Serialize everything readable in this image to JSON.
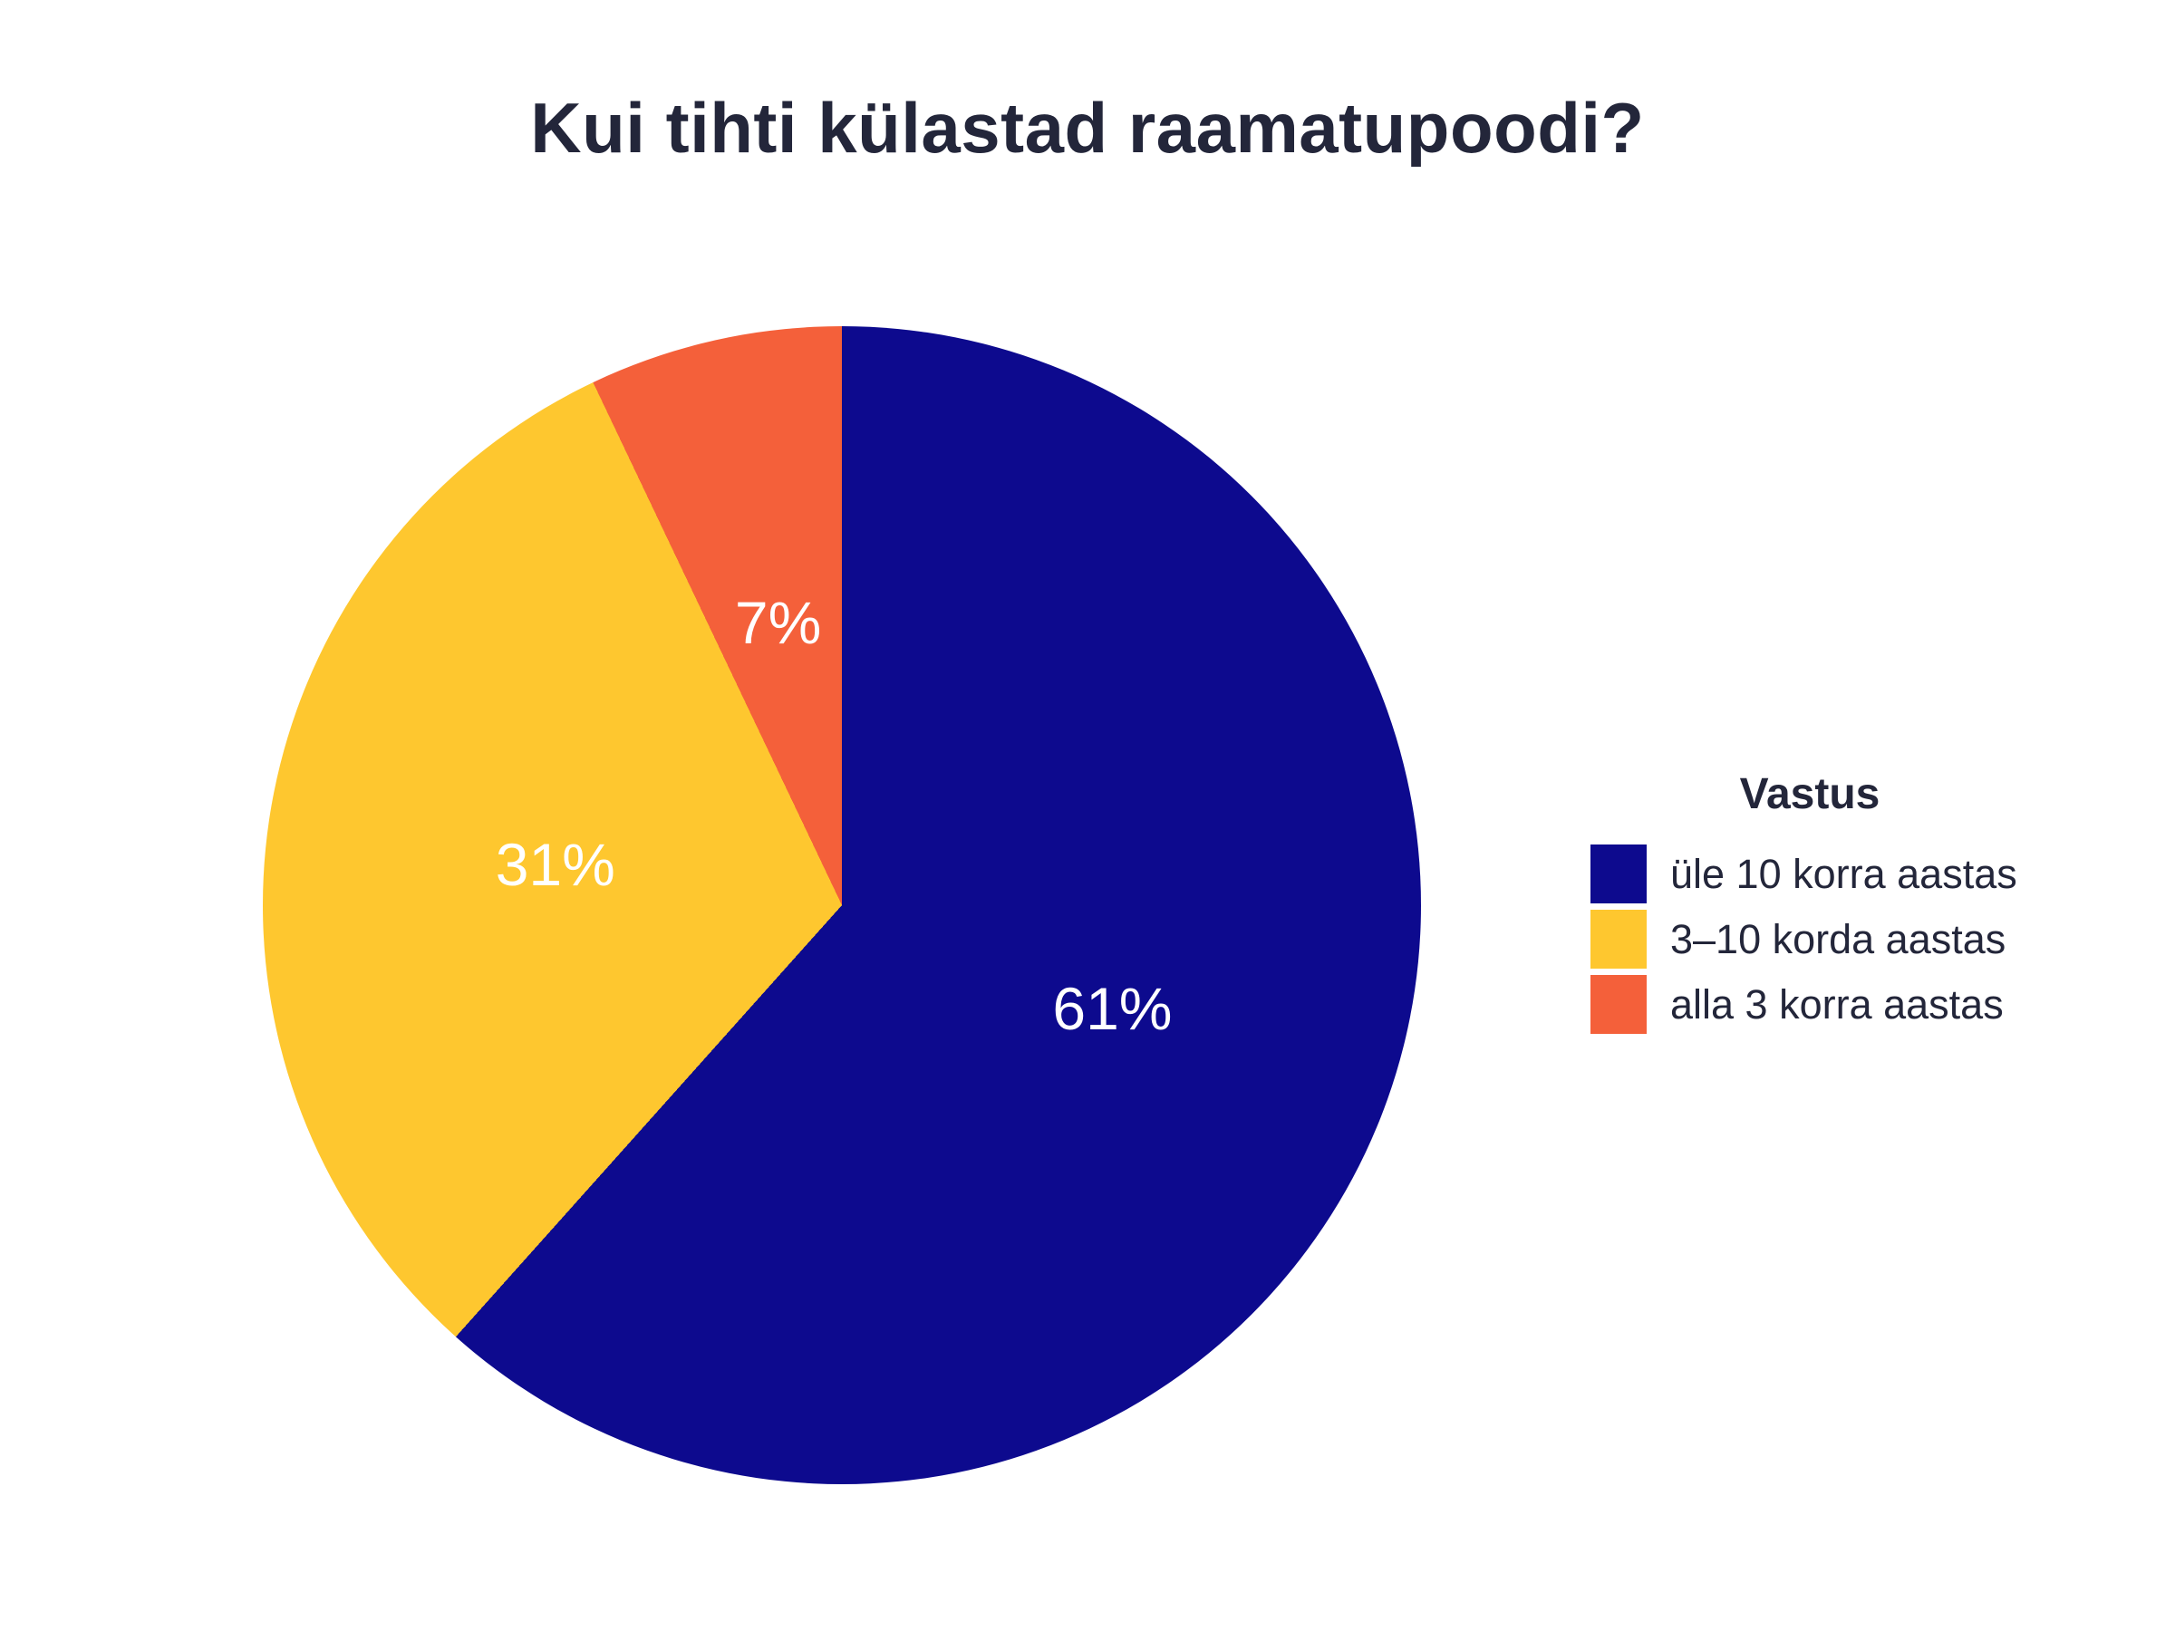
{
  "title": "Kui tihti külastad raamatupoodi?",
  "background_color": "#ffffff",
  "text_color": "#23263a",
  "chart_data": {
    "type": "pie",
    "title": "Kui tihti külastad raamatupoodi?",
    "legend": {
      "title": "Vastus",
      "position": "right"
    },
    "slices": [
      {
        "label": "üle 10 korra aastas",
        "value": 61,
        "display": "61%",
        "color": "#0d0a8e"
      },
      {
        "label": "3–10 korda aastas",
        "value": 31,
        "display": "31%",
        "color": "#fec72f"
      },
      {
        "label": "alla 3 korra aastas",
        "value": 7,
        "display": "7%",
        "color": "#f4603a"
      }
    ],
    "values_are_percent": true,
    "start_angle_deg": 0,
    "direction": "clockwise",
    "slice_label_color": "#ffffff",
    "slice_label_radius_fraction": 0.5
  }
}
